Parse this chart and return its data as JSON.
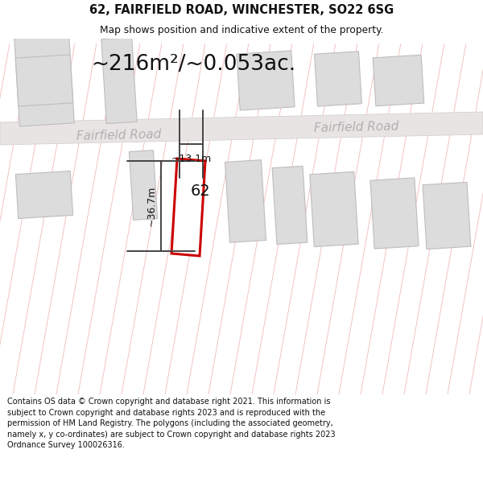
{
  "title_line1": "62, FAIRFIELD ROAD, WINCHESTER, SO22 6SG",
  "title_line2": "Map shows position and indicative extent of the property.",
  "area_text": "~216m²/~0.053ac.",
  "label_62": "62",
  "dim_width": "~13.1m",
  "dim_height": "~36.7m",
  "road_label_left": "Fairfield Road",
  "road_label_right": "Fairfield Road",
  "footer_text": "Contains OS data © Crown copyright and database right 2021. This information is subject to Crown copyright and database rights 2023 and is reproduced with the permission of HM Land Registry. The polygons (including the associated geometry, namely x, y co-ordinates) are subject to Crown copyright and database rights 2023 Ordnance Survey 100026316.",
  "bg_color": "#f7f4f4",
  "map_bg": "#f7f4f4",
  "highlight_fill": "#ffffff",
  "highlight_edge": "#cc0000",
  "dim_line_color": "#444444",
  "road_text_color": "#b0b0b0",
  "building_fill": "#dcdcdc",
  "building_edge": "#c0bcbc",
  "plot_outline_color": "#e8a0a0",
  "road_fill": "#e8e4e4"
}
